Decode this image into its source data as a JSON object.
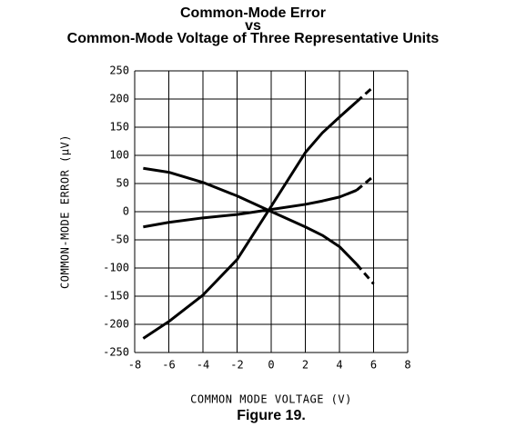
{
  "chart_data": {
    "type": "line",
    "title": "Common-Mode Error",
    "subtitle": "vs",
    "subtitle2": "Common-Mode Voltage of Three Representative Units",
    "xlabel": "COMMON MODE VOLTAGE (V)",
    "ylabel": "COMMON-MODE ERROR (μV)",
    "caption": "Figure 19.",
    "x": [
      -7.5,
      -6,
      -4,
      -2,
      -0.2,
      2,
      3,
      4,
      5,
      6
    ],
    "series": [
      {
        "color": "#000000",
        "dash": false,
        "values": [
          -225,
          -195,
          -148,
          -85,
          0,
          105,
          140,
          168,
          195,
          null
        ]
      },
      {
        "color": "#000000",
        "dash": true,
        "values": [
          null,
          null,
          null,
          null,
          null,
          null,
          null,
          null,
          195,
          222
        ]
      },
      {
        "color": "#000000",
        "dash": false,
        "values": [
          77,
          70,
          52,
          28,
          3,
          -27,
          -42,
          -62,
          -93,
          null
        ]
      },
      {
        "color": "#000000",
        "dash": true,
        "values": [
          null,
          null,
          null,
          null,
          null,
          null,
          null,
          null,
          -93,
          -128
        ]
      },
      {
        "color": "#000000",
        "dash": false,
        "values": [
          -27,
          -19,
          -11,
          -5,
          3,
          13,
          19,
          26,
          38,
          null
        ]
      },
      {
        "color": "#000000",
        "dash": true,
        "values": [
          null,
          null,
          null,
          null,
          null,
          null,
          null,
          null,
          38,
          63
        ]
      }
    ],
    "xlim": [
      -8,
      8
    ],
    "xticks": [
      -8,
      -6,
      -4,
      -2,
      0,
      2,
      4,
      6,
      8
    ],
    "ylim": [
      -250,
      250
    ],
    "yticks": [
      -250,
      -200,
      -150,
      -100,
      -50,
      0,
      50,
      100,
      150,
      200,
      250
    ],
    "grid": true
  }
}
